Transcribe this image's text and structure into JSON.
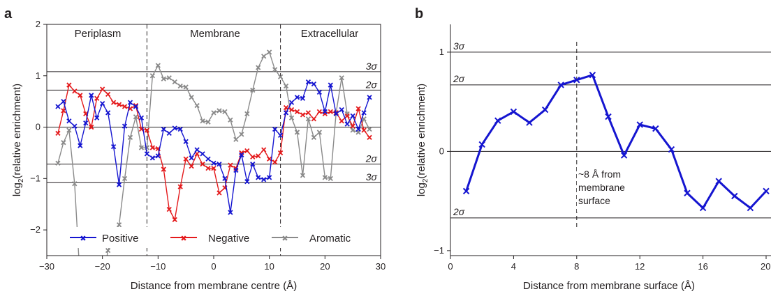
{
  "chart_data": [
    {
      "panel_label": "a",
      "type": "line",
      "xlabel": "Distance from membrane centre (Å)",
      "ylabel_base": "log",
      "ylabel_sub": "2",
      "ylabel_rest": "(relative enrichment)",
      "xlim": [
        -30,
        30
      ],
      "ylim": [
        -2.5,
        2
      ],
      "xticks": [
        -30,
        -20,
        -10,
        0,
        10,
        20,
        30
      ],
      "xtick_labels": [
        "−30",
        "−20",
        "−10",
        "0",
        "10",
        "20",
        "30"
      ],
      "yticks": [
        -2,
        -1,
        0,
        1,
        2
      ],
      "ytick_labels": [
        "−2",
        "−1",
        "0",
        "1",
        "2"
      ],
      "hlines": [
        {
          "y": 1.08,
          "label": "3σ"
        },
        {
          "y": 0.72,
          "label": "2σ"
        },
        {
          "y": 0,
          "label": ""
        },
        {
          "y": -0.72,
          "label": "2σ"
        },
        {
          "y": -1.08,
          "label": "3σ"
        }
      ],
      "vlines": [
        -12,
        12
      ],
      "regions": [
        "Periplasm",
        "Membrane",
        "Extracellular"
      ],
      "legend_position": "bottom",
      "series": [
        {
          "name": "Positive",
          "color": "#1515d0",
          "x": [
            -28,
            -27,
            -26,
            -25,
            -24,
            -23,
            -22,
            -21,
            -20,
            -19,
            -18,
            -17,
            -16,
            -15,
            -14,
            -13,
            -12,
            -11,
            -10,
            -9,
            -8,
            -7,
            -6,
            -5,
            -4,
            -3,
            -2,
            -1,
            0,
            1,
            2,
            3,
            4,
            5,
            6,
            7,
            8,
            9,
            10,
            11,
            12,
            13,
            14,
            15,
            16,
            17,
            18,
            19,
            20,
            21,
            22,
            23,
            24,
            25,
            26,
            27,
            28
          ],
          "y": [
            0.4,
            0.5,
            0.12,
            0.02,
            -0.36,
            0.08,
            0.62,
            0.18,
            0.46,
            0.28,
            -0.38,
            -1.12,
            0.02,
            0.48,
            0.4,
            0.18,
            -0.52,
            -0.6,
            -0.56,
            -0.04,
            -0.12,
            -0.02,
            -0.04,
            -0.28,
            -0.6,
            -0.44,
            -0.52,
            -0.62,
            -0.7,
            -0.72,
            -1.0,
            -1.66,
            -0.84,
            -0.54,
            -1.06,
            -0.72,
            -0.98,
            -1.02,
            -0.98,
            -0.04,
            -0.16,
            0.28,
            0.48,
            0.58,
            0.56,
            0.88,
            0.84,
            0.68,
            0.3,
            0.82,
            0.26,
            0.34,
            0.06,
            0.22,
            -0.04,
            0.28,
            0.58
          ]
        },
        {
          "name": "Negative",
          "color": "#e41a1c",
          "x": [
            -28,
            -27,
            -26,
            -25,
            -24,
            -23,
            -22,
            -21,
            -20,
            -19,
            -18,
            -17,
            -16,
            -15,
            -14,
            -13,
            -12,
            -11,
            -10,
            -9,
            -8,
            -7,
            -6,
            -5,
            -4,
            -3,
            -2,
            -1,
            0,
            1,
            2,
            3,
            4,
            5,
            6,
            7,
            8,
            9,
            10,
            11,
            12,
            13,
            14,
            15,
            16,
            17,
            18,
            19,
            20,
            21,
            22,
            23,
            24,
            25,
            26,
            27,
            28
          ],
          "y": [
            -0.12,
            0.32,
            0.82,
            0.7,
            0.62,
            0.26,
            0.0,
            0.56,
            0.74,
            0.64,
            0.48,
            0.44,
            0.4,
            0.36,
            0.42,
            -0.04,
            -0.06,
            -0.4,
            -0.42,
            -0.82,
            -1.6,
            -1.8,
            -1.16,
            -0.62,
            -0.76,
            -0.52,
            -0.72,
            -0.8,
            -0.8,
            -1.28,
            -1.18,
            -0.74,
            -0.8,
            -0.5,
            -0.46,
            -0.58,
            -0.56,
            -0.44,
            -0.62,
            -0.68,
            -0.5,
            0.38,
            0.34,
            0.3,
            0.24,
            0.28,
            0.16,
            0.3,
            0.26,
            0.3,
            0.28,
            0.12,
            0.22,
            0.02,
            0.36,
            -0.06,
            -0.2
          ]
        },
        {
          "name": "Aromatic",
          "color": "#8a8a8a",
          "x": [
            -28,
            -27,
            -26,
            -25,
            -24,
            -23,
            -22,
            -21,
            -20,
            -19,
            -18,
            -17,
            -16,
            -15,
            -14,
            -13,
            -12,
            -11,
            -10,
            -9,
            -8,
            -7,
            -6,
            -5,
            -4,
            -3,
            -2,
            -1,
            0,
            1,
            2,
            3,
            4,
            5,
            6,
            7,
            8,
            9,
            10,
            11,
            12,
            13,
            14,
            15,
            16,
            17,
            18,
            19,
            20,
            21,
            22,
            23,
            24,
            25,
            26,
            27,
            28
          ],
          "y": [
            -0.7,
            -0.3,
            -0.06,
            -1.1,
            -3.0,
            -3.0,
            -3.0,
            -3.0,
            -3.0,
            -2.4,
            -2.1,
            -1.9,
            -1.0,
            -0.2,
            0.2,
            -0.4,
            -0.4,
            1.0,
            1.2,
            0.94,
            0.96,
            0.88,
            0.8,
            0.78,
            0.58,
            0.42,
            0.12,
            0.1,
            0.28,
            0.32,
            0.3,
            0.14,
            -0.24,
            -0.14,
            0.26,
            0.72,
            1.16,
            1.38,
            1.46,
            1.12,
            0.98,
            0.8,
            0.18,
            -0.1,
            -0.94,
            0.16,
            -0.2,
            -0.1,
            -0.98,
            -1.0,
            0.28,
            0.96,
            0.26,
            -0.06,
            -0.1,
            0.16,
            -0.04
          ]
        }
      ]
    },
    {
      "panel_label": "b",
      "type": "line",
      "xlabel": "Distance from membrane surface (Å)",
      "ylabel_base": "log",
      "ylabel_sub": "2",
      "ylabel_rest": "(relative enrichment)",
      "xlim": [
        0,
        20
      ],
      "ylim": [
        -1.05,
        1.28
      ],
      "xticks": [
        0,
        4,
        8,
        12,
        16,
        20
      ],
      "xtick_labels": [
        "0",
        "4",
        "8",
        "12",
        "16",
        "20"
      ],
      "yticks": [
        -1,
        0,
        1
      ],
      "ytick_labels": [
        "−1",
        "0",
        "1"
      ],
      "hlines": [
        {
          "y": 1.0,
          "label": "3σ"
        },
        {
          "y": 0.67,
          "label": "2σ"
        },
        {
          "y": 0,
          "label": ""
        },
        {
          "y": -0.67,
          "label": "2σ"
        }
      ],
      "vline": 8,
      "annotation": [
        "~8 Å from",
        "membrane",
        "surface"
      ],
      "series": [
        {
          "name": "",
          "color": "#1515d0",
          "x": [
            1,
            2,
            3,
            4,
            5,
            6,
            7,
            8,
            9,
            10,
            11,
            12,
            13,
            14,
            15,
            16,
            17,
            18,
            19,
            20
          ],
          "y": [
            -0.4,
            0.07,
            0.31,
            0.4,
            0.29,
            0.42,
            0.67,
            0.72,
            0.77,
            0.35,
            -0.04,
            0.27,
            0.23,
            0.02,
            -0.42,
            -0.57,
            -0.3,
            -0.45,
            -0.57,
            -0.4
          ]
        }
      ]
    }
  ]
}
